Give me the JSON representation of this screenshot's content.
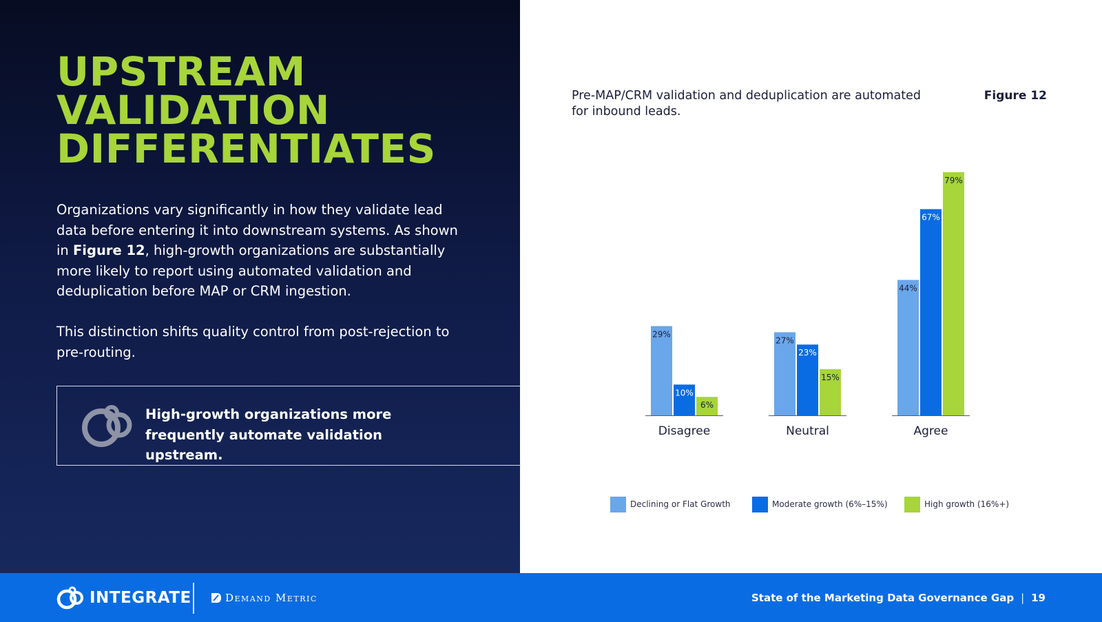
{
  "headline": {
    "line1": "UPSTREAM",
    "line2": "VALIDATION",
    "line3": "DIFFERENTIATES"
  },
  "body": {
    "p1_before": "Organizations vary significantly in how they validate lead data before entering it into downstream systems. As shown in ",
    "p1_bold": "Figure 12",
    "p1_after": ", high-growth organizations are substantially more likely to report using automated validation and deduplication before MAP or CRM ingestion.",
    "p2": "This distinction shifts quality control from post-rejection to pre-routing."
  },
  "callout": {
    "icon": "integrate-circles-icon",
    "text": "High-growth organizations more frequently automate validation upstream."
  },
  "chart_header": {
    "subtitle": "Pre-MAP/CRM validation and deduplication are automated for inbound leads.",
    "figure_label": "Figure 12"
  },
  "chart_data": {
    "type": "bar",
    "categories": [
      "Disagree",
      "Neutral",
      "Agree"
    ],
    "series": [
      {
        "name": "Declining or Flat Growth",
        "color": "#6aa6ea",
        "values": [
          29,
          27,
          44
        ],
        "labels": [
          "29%",
          "27%",
          "44%"
        ]
      },
      {
        "name": "Moderate growth (6%–15%)",
        "color": "#0a6ce3",
        "values": [
          10,
          23,
          67
        ],
        "labels": [
          "10%",
          "23%",
          "67%"
        ]
      },
      {
        "name": "High growth (16%+)",
        "color": "#a7d53a",
        "values": [
          6,
          15,
          79
        ],
        "labels": [
          "6%",
          "15%",
          "79%"
        ]
      }
    ],
    "ylim": [
      0,
      79
    ],
    "grid": false,
    "legend_position": "bottom"
  },
  "footer": {
    "brand_integrate": "INTEGRATE",
    "brand_integrate_icon": "integrate-logo-icon",
    "brand_dm": "Demand Metric",
    "brand_dm_icon": "demand-metric-logo-icon",
    "report_title": "State of the Marketing Data Governance Gap",
    "separator": "|",
    "page_number": "19"
  },
  "colors": {
    "headline_green": "#a7d53a",
    "navy_top": "#070c22",
    "navy_bottom": "#17285e",
    "footer_blue": "#0a6ce3"
  }
}
